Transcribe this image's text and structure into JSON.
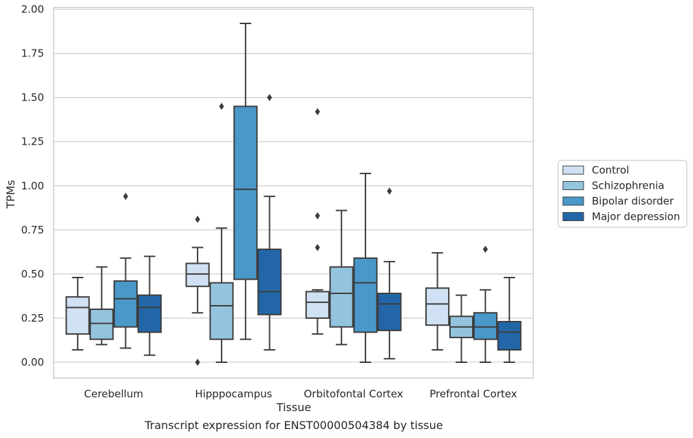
{
  "chart_data": {
    "type": "box",
    "caption": "Transcript expression for ENST00000504384 by tissue",
    "xlabel": "Tissue",
    "ylabel": "TPMs",
    "ylim": [
      -0.09,
      2.01
    ],
    "yticks": [
      0.0,
      0.25,
      0.5,
      0.75,
      1.0,
      1.25,
      1.5,
      1.75,
      2.0
    ],
    "ytick_labels": [
      "0.00",
      "0.25",
      "0.50",
      "0.75",
      "1.00",
      "1.25",
      "1.50",
      "1.75",
      "2.00"
    ],
    "grid": true,
    "legend_position": "outside-right",
    "categories": [
      "Cerebellum",
      "Hipppocampus",
      "Orbitofontal Cortex",
      "Prefrontal Cortex"
    ],
    "series": [
      {
        "name": "Control",
        "color": "#cfe1f2",
        "boxes": [
          {
            "whislo": 0.07,
            "q1": 0.16,
            "med": 0.31,
            "q3": 0.37,
            "whishi": 0.48,
            "fliers": []
          },
          {
            "whislo": 0.28,
            "q1": 0.43,
            "med": 0.5,
            "q3": 0.56,
            "whishi": 0.65,
            "fliers": [
              0.81,
              0.0
            ]
          },
          {
            "whislo": 0.16,
            "q1": 0.25,
            "med": 0.34,
            "q3": 0.4,
            "whishi": 0.41,
            "fliers": [
              1.42,
              0.83,
              0.65
            ]
          },
          {
            "whislo": 0.07,
            "q1": 0.21,
            "med": 0.33,
            "q3": 0.42,
            "whishi": 0.62,
            "fliers": []
          }
        ]
      },
      {
        "name": "Schizophrenia",
        "color": "#93c4de",
        "boxes": [
          {
            "whislo": 0.1,
            "q1": 0.13,
            "med": 0.22,
            "q3": 0.3,
            "whishi": 0.54,
            "fliers": []
          },
          {
            "whislo": 0.0,
            "q1": 0.13,
            "med": 0.32,
            "q3": 0.45,
            "whishi": 0.76,
            "fliers": [
              1.45
            ]
          },
          {
            "whislo": 0.1,
            "q1": 0.2,
            "med": 0.39,
            "q3": 0.54,
            "whishi": 0.86,
            "fliers": []
          },
          {
            "whislo": 0.0,
            "q1": 0.14,
            "med": 0.2,
            "q3": 0.26,
            "whishi": 0.38,
            "fliers": []
          }
        ]
      },
      {
        "name": "Bipolar disorder",
        "color": "#4a98c9",
        "boxes": [
          {
            "whislo": 0.08,
            "q1": 0.2,
            "med": 0.36,
            "q3": 0.46,
            "whishi": 0.59,
            "fliers": [
              0.94
            ]
          },
          {
            "whislo": 0.13,
            "q1": 0.47,
            "med": 0.98,
            "q3": 1.45,
            "whishi": 1.92,
            "fliers": []
          },
          {
            "whislo": 0.0,
            "q1": 0.17,
            "med": 0.45,
            "q3": 0.59,
            "whishi": 1.07,
            "fliers": []
          },
          {
            "whislo": 0.0,
            "q1": 0.13,
            "med": 0.2,
            "q3": 0.28,
            "whishi": 0.41,
            "fliers": [
              0.64
            ]
          }
        ]
      },
      {
        "name": "Major depression",
        "color": "#2266a8",
        "boxes": [
          {
            "whislo": 0.04,
            "q1": 0.17,
            "med": 0.31,
            "q3": 0.38,
            "whishi": 0.6,
            "fliers": []
          },
          {
            "whislo": 0.07,
            "q1": 0.27,
            "med": 0.4,
            "q3": 0.64,
            "whishi": 0.94,
            "fliers": [
              1.5
            ]
          },
          {
            "whislo": 0.02,
            "q1": 0.18,
            "med": 0.33,
            "q3": 0.39,
            "whishi": 0.57,
            "fliers": [
              0.97
            ]
          },
          {
            "whislo": 0.0,
            "q1": 0.07,
            "med": 0.17,
            "q3": 0.23,
            "whishi": 0.48,
            "fliers": []
          }
        ]
      }
    ]
  }
}
